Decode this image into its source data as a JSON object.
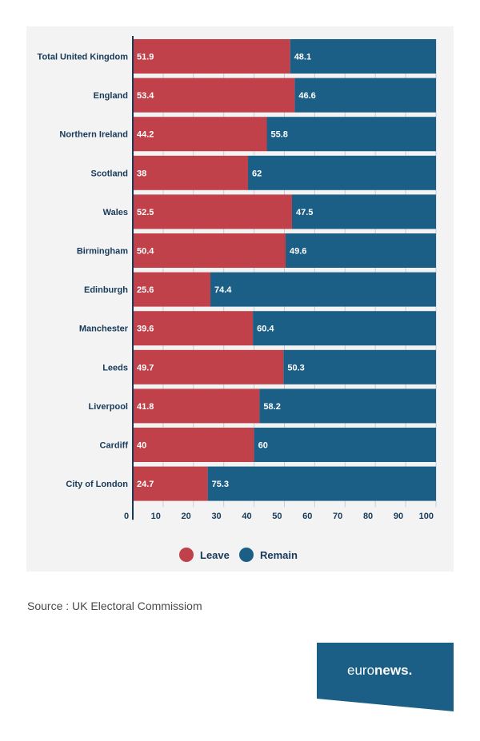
{
  "chart_data": {
    "type": "bar",
    "stacked": true,
    "orientation": "horizontal",
    "categories": [
      "Total United Kingdom",
      "England",
      "Northern Ireland",
      "Scotland",
      "Wales",
      "Birmingham",
      "Edinburgh",
      "Manchester",
      "Leeds",
      "Liverpool",
      "Cardiff",
      "City of London"
    ],
    "series": [
      {
        "name": "Leave",
        "color": "#c0414a",
        "values": [
          51.9,
          53.4,
          44.2,
          38,
          52.5,
          50.4,
          25.6,
          39.6,
          49.7,
          41.8,
          40,
          24.7
        ],
        "labels": [
          "51.9",
          "53.4",
          "44.2",
          "38",
          "52.5",
          "50.4",
          "25.6",
          "39.6",
          "49.7",
          "41.8",
          "40",
          "24.7"
        ]
      },
      {
        "name": "Remain",
        "color": "#1b5f86",
        "values": [
          48.1,
          46.6,
          55.8,
          62,
          47.5,
          49.6,
          74.4,
          60.4,
          50.3,
          58.2,
          60,
          75.3
        ],
        "labels": [
          "48.1",
          "46.6",
          "55.8",
          "62",
          "47.5",
          "49.6",
          "74.4",
          "60.4",
          "50.3",
          "58.2",
          "60",
          "75.3"
        ]
      }
    ],
    "xlim": [
      0,
      100
    ],
    "xticks": [
      0,
      10,
      20,
      30,
      40,
      50,
      60,
      70,
      80,
      90,
      100
    ],
    "xtick_labels": [
      "0",
      "10",
      "20",
      "30",
      "40",
      "50",
      "60",
      "70",
      "80",
      "90",
      "100"
    ],
    "grid": true,
    "legend_position": "bottom-center",
    "title": "",
    "xlabel": "",
    "ylabel": ""
  },
  "source": "Source : UK Electoral Commissiom",
  "logo": {
    "text_light": "euro",
    "text_bold": "news",
    "dot": ".",
    "bg_color": "#1b5f86"
  }
}
